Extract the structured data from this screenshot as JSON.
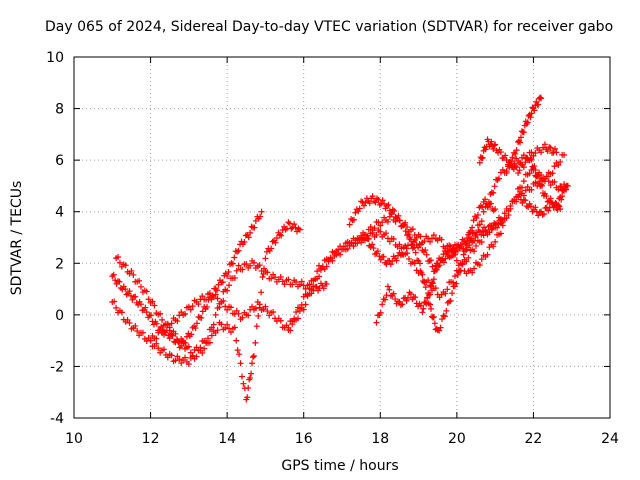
{
  "chart_data": {
    "type": "scatter",
    "title": "Day 065 of 2024, Sidereal Day-to-day VTEC variation (SDTVAR) for receiver gabo",
    "xlabel": "GPS time / hours",
    "ylabel": "SDTVAR / TECUs",
    "xlim": [
      10,
      24
    ],
    "ylim": [
      -4,
      10
    ],
    "xticks": [
      "10",
      "12",
      "14",
      "16",
      "18",
      "20",
      "22",
      "24"
    ],
    "yticks": [
      "-4",
      "-2",
      "0",
      "2",
      "4",
      "6",
      "8",
      "10"
    ],
    "grid": true,
    "marker": "+",
    "color": "#ff0000",
    "series": [
      {
        "x": [
          11.0,
          11.3,
          11.6,
          11.9,
          12.2,
          12.5,
          12.8,
          13.1,
          13.4,
          13.7,
          14.0,
          14.3,
          14.6,
          14.9
        ],
        "y": [
          1.5,
          1.0,
          0.6,
          0.1,
          -0.5,
          -0.8,
          -1.2,
          -0.6,
          0.2,
          1.0,
          1.6,
          2.6,
          3.2,
          4.0
        ]
      },
      {
        "x": [
          11.0,
          11.4,
          11.8,
          12.2,
          12.6,
          13.0,
          13.4,
          13.8,
          14.2,
          14.5,
          14.7,
          15.0,
          15.3,
          15.6,
          15.9
        ],
        "y": [
          0.5,
          -0.3,
          -0.8,
          -1.3,
          -1.7,
          -1.8,
          -1.3,
          -0.4,
          -0.6,
          -3.3,
          -1.5,
          2.3,
          3.0,
          3.5,
          3.3
        ]
      },
      {
        "x": [
          11.1,
          11.5,
          11.9,
          12.3,
          12.7,
          13.1,
          13.5,
          13.9,
          14.3,
          14.7,
          15.1,
          15.5,
          15.9,
          16.3,
          16.6
        ],
        "y": [
          2.2,
          1.6,
          0.8,
          -0.2,
          -0.9,
          -1.5,
          -0.9,
          0.8,
          1.8,
          2.0,
          1.5,
          1.3,
          1.2,
          1.0,
          1.2
        ]
      },
      {
        "x": [
          12.0,
          12.4,
          12.8,
          13.2,
          13.6,
          14.0,
          14.4,
          14.8,
          15.2,
          15.6,
          16.0,
          16.4,
          16.8,
          17.2,
          17.6,
          18.0,
          18.4,
          18.8,
          19.2,
          19.6,
          20.0,
          20.4,
          20.8,
          21.2,
          21.6,
          22.0,
          22.4,
          22.8
        ],
        "y": [
          -1.0,
          -0.5,
          0.0,
          0.5,
          0.8,
          0.3,
          -0.1,
          0.4,
          0.0,
          -0.6,
          0.3,
          1.6,
          2.3,
          2.7,
          3.0,
          3.2,
          2.8,
          2.1,
          1.3,
          0.7,
          1.6,
          2.5,
          3.2,
          3.8,
          4.6,
          5.0,
          5.4,
          6.2
        ]
      },
      {
        "x": [
          15.6,
          16.0,
          16.4,
          16.8,
          17.2,
          17.6,
          17.9,
          18.2,
          18.5,
          18.8,
          19.1,
          19.4,
          19.7,
          20.0,
          20.3,
          20.6,
          20.9,
          21.2
        ],
        "y": [
          -0.5,
          0.6,
          1.8,
          2.4,
          2.8,
          3.0,
          2.4,
          2.0,
          2.3,
          2.9,
          2.6,
          1.8,
          2.2,
          2.6,
          3.0,
          3.2,
          3.4,
          3.6
        ]
      },
      {
        "x": [
          17.2,
          17.5,
          17.8,
          18.1,
          18.4,
          18.7,
          19.0,
          19.3,
          19.5,
          19.8,
          20.1,
          20.4,
          20.7,
          21.0
        ],
        "y": [
          3.5,
          4.3,
          4.5,
          4.3,
          3.9,
          3.2,
          2.1,
          0.3,
          -0.7,
          0.5,
          1.8,
          3.5,
          4.4,
          4.1
        ]
      },
      {
        "x": [
          17.5,
          17.9,
          18.3,
          18.7,
          19.1,
          19.5,
          19.9,
          20.3,
          20.7,
          21.1,
          21.5,
          21.9,
          22.3,
          22.7,
          22.9
        ],
        "y": [
          3.0,
          3.5,
          3.8,
          3.4,
          2.9,
          3.0,
          2.3,
          1.6,
          2.2,
          3.1,
          4.5,
          5.6,
          5.3,
          4.9,
          5.0
        ]
      },
      {
        "x": [
          17.9,
          18.2,
          18.5,
          18.8,
          19.1,
          19.3,
          19.5,
          19.8,
          20.1,
          20.4,
          20.8,
          21.1,
          21.5,
          21.9,
          22.3,
          22.6
        ],
        "y": [
          -0.3,
          1.0,
          0.4,
          0.8,
          0.2,
          0.9,
          2.0,
          2.6,
          2.6,
          2.8,
          4.3,
          5.4,
          5.9,
          6.2,
          6.5,
          6.3
        ]
      },
      {
        "x": [
          20.6,
          20.8,
          21.0,
          21.3,
          21.6,
          21.9,
          22.1,
          22.3,
          22.6,
          22.8
        ],
        "y": [
          5.9,
          6.7,
          6.5,
          6.0,
          5.6,
          6.1,
          5.4,
          4.6,
          4.2,
          4.8
        ]
      },
      {
        "x": [
          21.3,
          21.6,
          21.8,
          22.0,
          22.2
        ],
        "y": [
          5.5,
          6.6,
          7.4,
          8.0,
          8.4
        ]
      },
      {
        "x": [
          21.6,
          21.9,
          22.2,
          22.5,
          22.7
        ],
        "y": [
          4.6,
          4.2,
          3.9,
          4.3,
          4.1
        ]
      }
    ]
  }
}
